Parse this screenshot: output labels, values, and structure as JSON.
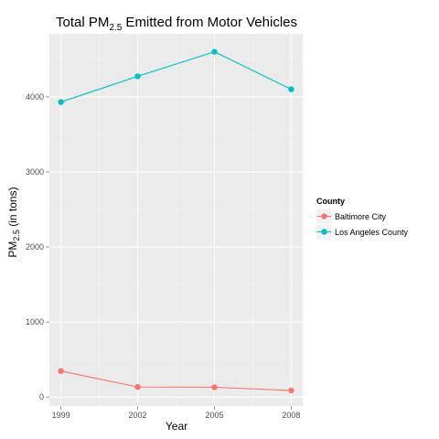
{
  "chart_data": {
    "type": "line",
    "title": "Total PM",
    "title_sub": "2.5",
    "title_suffix": " Emitted from Motor Vehicles",
    "xlabel": "Year",
    "ylabel": "PM",
    "ylabel_sub": "2.5",
    "ylabel_suffix": " (in tons)",
    "x": [
      "1999",
      "2002",
      "2005",
      "2008"
    ],
    "xlim": [
      1998.55,
      2008.45
    ],
    "ylim": [
      -120,
      4840
    ],
    "yticks": [
      0,
      1000,
      2000,
      3000,
      4000
    ],
    "grid": true,
    "legend_position": "right",
    "legend": {
      "title": "County"
    },
    "series": [
      {
        "name": "Baltimore City",
        "color": "#F8766D",
        "values": [
          346.82,
          134.31,
          130.43,
          88.28
        ]
      },
      {
        "name": "Los Angeles County",
        "color": "#00BFC4",
        "values": [
          3931.12,
          4274.03,
          4601.41,
          4101.32
        ]
      }
    ],
    "colors": {
      "panel_background": "#EBEBEB",
      "grid_major": "#FFFFFF",
      "grid_minor": "#F5F5F5"
    }
  }
}
